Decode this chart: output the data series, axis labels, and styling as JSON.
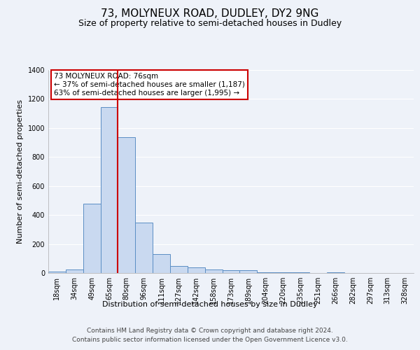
{
  "title": "73, MOLYNEUX ROAD, DUDLEY, DY2 9NG",
  "subtitle": "Size of property relative to semi-detached houses in Dudley",
  "xlabel": "Distribution of semi-detached houses by size in Dudley",
  "ylabel": "Number of semi-detached properties",
  "bin_labels": [
    "18sqm",
    "34sqm",
    "49sqm",
    "65sqm",
    "80sqm",
    "96sqm",
    "111sqm",
    "127sqm",
    "142sqm",
    "158sqm",
    "173sqm",
    "189sqm",
    "204sqm",
    "220sqm",
    "235sqm",
    "251sqm",
    "266sqm",
    "282sqm",
    "297sqm",
    "313sqm",
    "328sqm"
  ],
  "bar_values": [
    8,
    25,
    480,
    1145,
    935,
    350,
    130,
    50,
    40,
    25,
    20,
    20,
    5,
    5,
    5,
    0,
    5,
    0,
    0,
    0,
    0
  ],
  "bar_color": "#c9d9f0",
  "bar_edge_color": "#5b8ec4",
  "annotation_box_text": "73 MOLYNEUX ROAD: 76sqm\n← 37% of semi-detached houses are smaller (1,187)\n63% of semi-detached houses are larger (1,995) →",
  "annotation_box_color": "#ffffff",
  "annotation_box_edge_color": "#cc0000",
  "property_line_color": "#cc0000",
  "property_line_bin_index": 4,
  "ylim": [
    0,
    1400
  ],
  "yticks": [
    0,
    200,
    400,
    600,
    800,
    1000,
    1200,
    1400
  ],
  "footer_line1": "Contains HM Land Registry data © Crown copyright and database right 2024.",
  "footer_line2": "Contains public sector information licensed under the Open Government Licence v3.0.",
  "background_color": "#eef2f9",
  "grid_color": "#ffffff",
  "title_fontsize": 11,
  "subtitle_fontsize": 9,
  "axis_label_fontsize": 8,
  "tick_fontsize": 7,
  "annotation_fontsize": 7.5,
  "footer_fontsize": 6.5
}
